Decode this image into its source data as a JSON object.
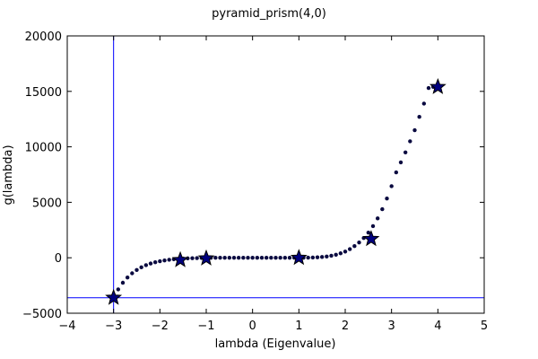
{
  "chart_data": {
    "type": "scatter",
    "title": "pyramid_prism(4,0)",
    "xlabel": "lambda (Eigenvalue)",
    "ylabel": "g(lambda)",
    "xlim": [
      -4,
      5
    ],
    "ylim": [
      -5000,
      20000
    ],
    "xticks": [
      -4,
      -3,
      -2,
      -1,
      0,
      1,
      2,
      3,
      4,
      5
    ],
    "yticks": [
      -5000,
      0,
      5000,
      10000,
      15000,
      20000
    ],
    "xtick_labels": [
      "−4",
      "−3",
      "−2",
      "−1",
      "0",
      "1",
      "2",
      "3",
      "4",
      "5"
    ],
    "ytick_labels": [
      "−5000",
      "0",
      "5000",
      "10000",
      "15000",
      "20000"
    ],
    "grid": false,
    "reference_lines": {
      "vertical_x": -3,
      "horizontal_y": -3600
    },
    "point_color": "#0a0a40",
    "star_color": "#00007f",
    "line_color": "#0000ff",
    "curve_samples": {
      "x": [
        -3.0,
        -2.9,
        -2.8,
        -2.7,
        -2.6,
        -2.5,
        -2.4,
        -2.3,
        -2.2,
        -2.1,
        -2.0,
        -1.9,
        -1.8,
        -1.7,
        -1.6,
        -1.5,
        -1.4,
        -1.3,
        -1.2,
        -1.1,
        -1.0,
        -0.9,
        -0.8,
        -0.7,
        -0.6,
        -0.5,
        -0.4,
        -0.3,
        -0.2,
        -0.1,
        0.0,
        0.1,
        0.2,
        0.3,
        0.4,
        0.5,
        0.6,
        0.7,
        0.8,
        0.9,
        1.0,
        1.1,
        1.2,
        1.3,
        1.4,
        1.5,
        1.6,
        1.7,
        1.8,
        1.9,
        2.0,
        2.1,
        2.2,
        2.3,
        2.4,
        2.5,
        2.6,
        2.7,
        2.8,
        2.9,
        3.0,
        3.1,
        3.2,
        3.3,
        3.4,
        3.5,
        3.6,
        3.7,
        3.8,
        3.9,
        4.0
      ],
      "y": [
        -3600,
        -2850,
        -2250,
        -1780,
        -1400,
        -1100,
        -860,
        -670,
        -520,
        -400,
        -310,
        -240,
        -180,
        -135,
        -100,
        -75,
        -55,
        -40,
        -28,
        -18,
        -10,
        -6,
        -3,
        -2,
        -1,
        0,
        0,
        0,
        0,
        0,
        0,
        0,
        0,
        0,
        0,
        0,
        0,
        0,
        0,
        0,
        0,
        2,
        8,
        20,
        40,
        70,
        115,
        180,
        270,
        400,
        560,
        780,
        1050,
        1380,
        1780,
        2270,
        2850,
        3550,
        4380,
        5340,
        6450,
        7700,
        8600,
        9500,
        10500,
        11500,
        12700,
        13900,
        15300,
        15400,
        15400
      ]
    },
    "eigenvalues": {
      "x": [
        -3.0,
        -1.56,
        -1.0,
        1.0,
        2.56,
        4.0
      ],
      "y": [
        -3600,
        -200,
        -50,
        0,
        1700,
        15400
      ]
    }
  }
}
